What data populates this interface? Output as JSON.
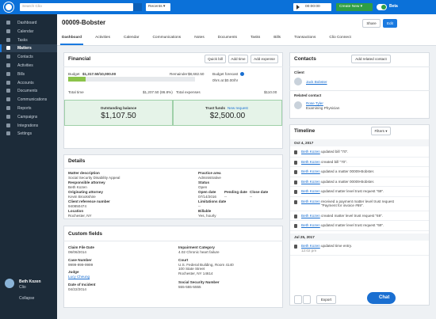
{
  "topbar": {
    "search_placeholder": "Search Clio",
    "recents": "Recents ▾",
    "timer": "00:00:00",
    "create_new": "Create New ▾",
    "beta": "Beta"
  },
  "sidebar": {
    "items": [
      "Dashboard",
      "Calendar",
      "Tasks",
      "Matters",
      "Contacts",
      "Activities",
      "Bills",
      "Accounts",
      "Documents",
      "Communications",
      "Reports",
      "Campaigns",
      "Integrations",
      "Settings"
    ],
    "active": "Matters",
    "user_name": "Beth Kozen",
    "user_org": "Clio",
    "collapse": "Collapse"
  },
  "header": {
    "title": "00009-Bobster",
    "share": "Share",
    "edit": "Edit"
  },
  "tabs": [
    "Dashboard",
    "Activities",
    "Calendar",
    "Communications",
    "Notes",
    "Documents",
    "Tasks",
    "Bills",
    "Transactions",
    "Clio Connect"
  ],
  "financial": {
    "title": "Financial",
    "buttons": [
      "Quick bill",
      "Add time",
      "Add expense"
    ],
    "budget_label": "Budget",
    "budget_value": "$1,317.50/10,000.00",
    "remainder_label": "Remainder",
    "remainder_value": "$8,682.50",
    "forecast_label": "Budget forecast",
    "forecast_value": "0hrs at $0.00/hr",
    "total_time_label": "Total time",
    "total_time_value": "$1,207.50 (86.8%)",
    "total_expenses_label": "Total expenses",
    "total_expenses_value": "$110.00",
    "outstanding_label": "Outstanding balance",
    "outstanding_value": "$1,107.50",
    "trust_label": "Trust funds",
    "trust_link": "New request",
    "trust_value": "$2,500.00"
  },
  "details": {
    "title": "Details",
    "fields": [
      {
        "label": "Matter description",
        "value": "Social Security Disability Appeal"
      },
      {
        "label": "Practice area",
        "value": "Administrative"
      },
      {
        "label": "Responsible attorney",
        "value": "Beth Kozen"
      },
      {
        "label": "Status",
        "value": "Open"
      },
      {
        "label": "Originating attorney",
        "value": "Kevin Brookshire"
      },
      {
        "label": "Open date",
        "value": "07/14/2016"
      },
      {
        "label": "Pending date",
        "value": "--"
      },
      {
        "label": "Close date",
        "value": "--"
      },
      {
        "label": "Client reference number",
        "value": "940850474"
      },
      {
        "label": "Limitations date",
        "value": "--"
      },
      {
        "label": "Location",
        "value": "Rochester, NY"
      },
      {
        "label": "Billable",
        "value": "Yes, hourly"
      }
    ]
  },
  "custom_fields": {
    "title": "Custom fields",
    "fields": [
      {
        "label": "Claim File Date",
        "value": "06/06/2014"
      },
      {
        "label": "Case Number",
        "value": "9999-999-9999"
      },
      {
        "label": "Judge",
        "value": "Lucy Cheung"
      },
      {
        "label": "Date of Incident",
        "value": "04/22/2014"
      },
      {
        "label": "Impairment Category",
        "value": "4.02 Chronic heart failure"
      },
      {
        "label": "Court",
        "value": "U.S. Federal Building, Room 4140\n100 State Street\nRochester, NY 14614"
      },
      {
        "label": "Social Security Number",
        "value": "555-555-5555"
      }
    ]
  },
  "contacts": {
    "title": "Contacts",
    "add": "Add related contact",
    "client_label": "Client",
    "client_name": "Jack Bobster",
    "related_label": "Related contact",
    "related_name": "Rose Tyler",
    "related_role": "Examining Physician"
  },
  "timeline": {
    "title": "Timeline",
    "filters": "Filters ▾",
    "groups": [
      {
        "date": "Oct 4, 2017",
        "entries": [
          {
            "actor": "Beth Kozen",
            "text": "updated bill \"70\"."
          },
          {
            "actor": "Beth Kozen",
            "text": "created bill \"70\"."
          },
          {
            "actor": "Beth Kozen",
            "text": "updated a matter 00009-Bobster."
          },
          {
            "actor": "Beth Kozen",
            "text": "updated a matter 00009-Bobster."
          },
          {
            "actor": "Beth Kozen",
            "text": "updated matter level trust request \"69\"."
          },
          {
            "actor": "Beth Kozen",
            "text": "received a payment matter level trust request \"Payment for invoice #69\"."
          },
          {
            "actor": "Beth Kozen",
            "text": "created matter level trust request \"69\"."
          },
          {
            "actor": "Beth Kozen",
            "text": "updated matter level trust request \"69\"."
          }
        ]
      },
      {
        "date": "Jul 25, 2017",
        "entries": [
          {
            "actor": "Beth Kozen",
            "text": "updated time entry.",
            "time": "12:02 pm"
          }
        ]
      }
    ],
    "export": "Export"
  },
  "chat": "Chat"
}
